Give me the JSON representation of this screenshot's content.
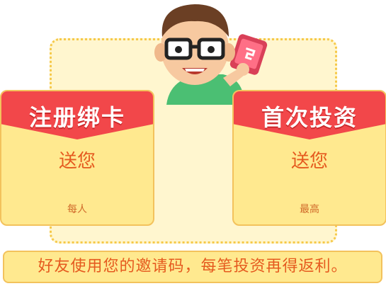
{
  "cards": [
    {
      "title": "注册绑卡",
      "give": "送您",
      "note": "每人"
    },
    {
      "title": "首次投资",
      "give": "送您",
      "note": "最高"
    }
  ],
  "banner": {
    "text": "好友使用您的邀请码，每笔投资再得返利。"
  },
  "colors": {
    "ribbon": "#f2474a",
    "card": "#ffe98f",
    "accent": "#e55a1f",
    "frame": "#f6c94a"
  }
}
